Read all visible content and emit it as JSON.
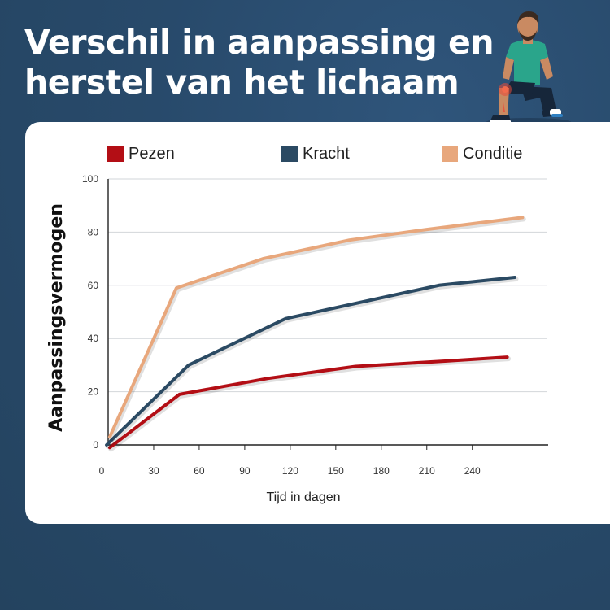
{
  "header": {
    "title_line1": "Verschil in aanpassing en",
    "title_line2": "herstel van het lichaam"
  },
  "chart_data": {
    "type": "line",
    "title": "Verschil in aanpassing en herstel van het lichaam",
    "xlabel": "Tijd in dagen",
    "ylabel": "Aanpassingsvermogen",
    "xlim": [
      0,
      290
    ],
    "ylim": [
      0,
      100
    ],
    "xticks": [
      0,
      30,
      60,
      90,
      120,
      150,
      180,
      210,
      240
    ],
    "yticks": [
      0,
      20,
      40,
      60,
      80,
      100
    ],
    "grid": true,
    "legend_position": "top",
    "series": [
      {
        "name": "Pezen",
        "color": "#b30e15",
        "x": [
          1,
          47,
          105,
          163,
          222,
          263
        ],
        "y": [
          -1,
          19,
          25,
          29.5,
          31.5,
          33
        ]
      },
      {
        "name": "Kracht",
        "color": "#2b4a63",
        "x": [
          -1,
          53,
          117,
          218,
          268
        ],
        "y": [
          0,
          30,
          47.5,
          60,
          63
        ]
      },
      {
        "name": "Conditie",
        "color": "#e8a77c",
        "x": [
          1,
          45,
          102,
          159,
          210,
          273
        ],
        "y": [
          3,
          59,
          70,
          77,
          81,
          85.5
        ]
      }
    ]
  }
}
